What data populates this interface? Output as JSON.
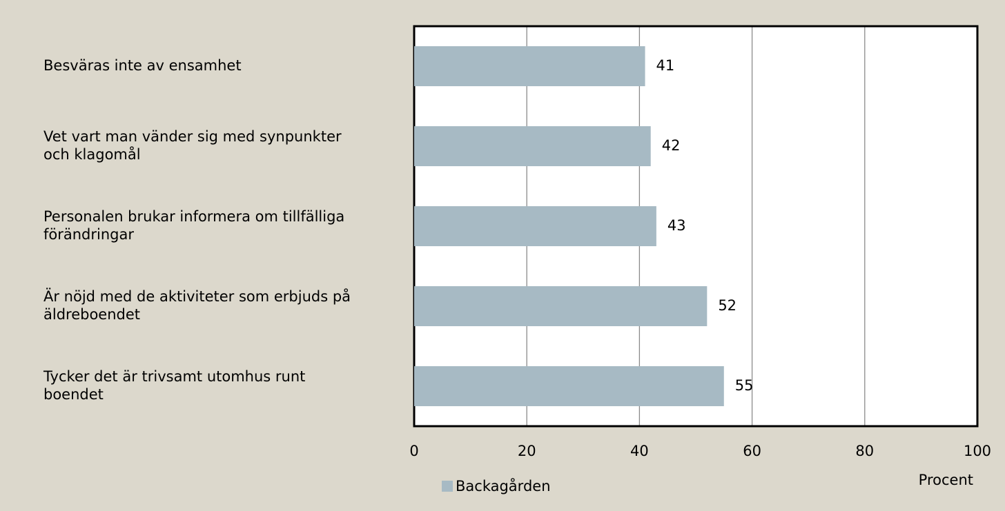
{
  "chart_data": {
    "type": "bar",
    "orientation": "horizontal",
    "categories": [
      "Besväras inte av ensamhet",
      "Vet vart man vänder sig med synpunkter och klagomål",
      "Personalen brukar informera om tillfälliga förändringar",
      "Är nöjd med de aktiviteter som erbjuds på äldreboendet",
      "Tycker det är trivsamt utomhus runt boendet"
    ],
    "series": [
      {
        "name": "Backagården",
        "color": "#a7bac4",
        "values": [
          41,
          42,
          43,
          52,
          55
        ]
      }
    ],
    "xlim": [
      0,
      100
    ],
    "xticks": [
      0,
      20,
      40,
      60,
      80,
      100
    ],
    "xlabel": "Procent",
    "grid": true
  }
}
